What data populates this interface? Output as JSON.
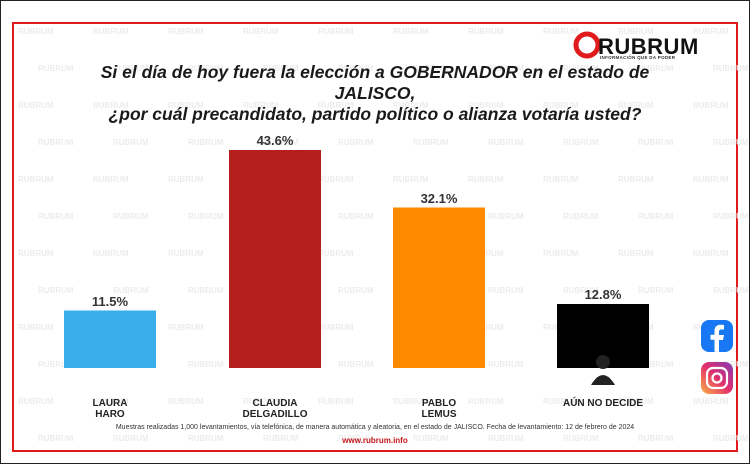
{
  "chart_data": {
    "type": "bar",
    "title": "Si el día de hoy fuera la elección a GOBERNADOR en el estado de JALISCO,\n¿por cuál precandidato, partido político o alianza votaría usted?",
    "brand": "RUBRUM",
    "brand_tagline": "INFORMACIÓN QUE DA PODER",
    "watermark": "RUBRUM",
    "categories": [
      "LAURA\nHARO",
      "CLAUDIA\nDELGADILLO",
      "PABLO\nLEMUS",
      "AÚN NO DECIDE"
    ],
    "values": [
      11.5,
      43.6,
      32.1,
      12.8
    ],
    "value_labels": [
      "11.5%",
      "43.6%",
      "32.1%",
      "12.8%"
    ],
    "colors": [
      "#3aaeea",
      "#b21f1c",
      "#ff8a00",
      "#000000"
    ],
    "note": "Muestras realizadas 1,000 levantamientos, vía telefónica, de manera automática y aleatoria, en el estado de  JALISCO. Fecha de levantamiento: 12 de febrero de 2024",
    "url": "www.rubrum.info"
  }
}
